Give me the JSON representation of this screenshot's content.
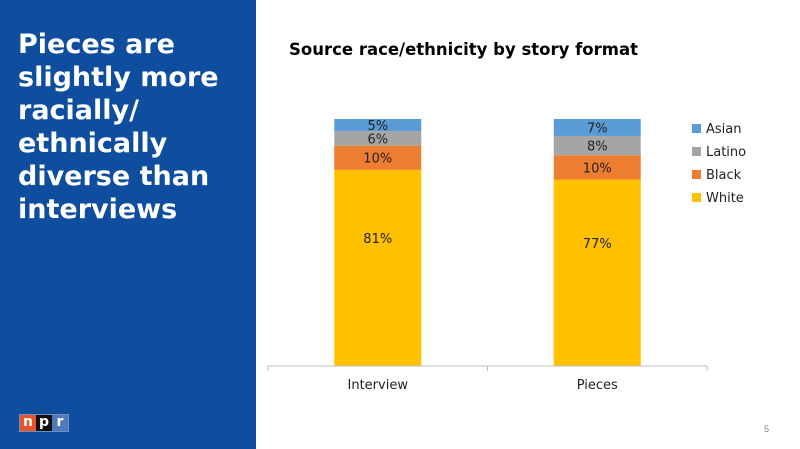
{
  "slide": {
    "headline": "Pieces are slightly more racially/ ethnically diverse than interviews",
    "slide_number": "5",
    "logo": [
      "n",
      "p",
      "r"
    ],
    "logo_colors": [
      "#e8552a",
      "#111111",
      "#4f79b8"
    ],
    "panel_color": "#0f4e9e"
  },
  "chart_data": {
    "type": "bar",
    "stacked": true,
    "title": "Source race/ethnicity by story format",
    "categories": [
      "Interview",
      "Pieces"
    ],
    "series": [
      {
        "name": "White",
        "color": "#ffc000",
        "values": [
          81,
          77
        ],
        "labels": [
          "81%",
          "77%"
        ]
      },
      {
        "name": "Black",
        "color": "#ed7d31",
        "values": [
          10,
          10
        ],
        "labels": [
          "10%",
          "10%"
        ]
      },
      {
        "name": "Latino",
        "color": "#a5a5a5",
        "values": [
          6,
          8
        ],
        "labels": [
          "6%",
          "8%"
        ]
      },
      {
        "name": "Asian",
        "color": "#5b9bd5",
        "values": [
          5,
          7
        ],
        "labels": [
          "5%",
          "7%"
        ]
      }
    ],
    "legend_order": [
      "Asian",
      "Latino",
      "Black",
      "White"
    ],
    "legend": "right",
    "grid": false
  }
}
